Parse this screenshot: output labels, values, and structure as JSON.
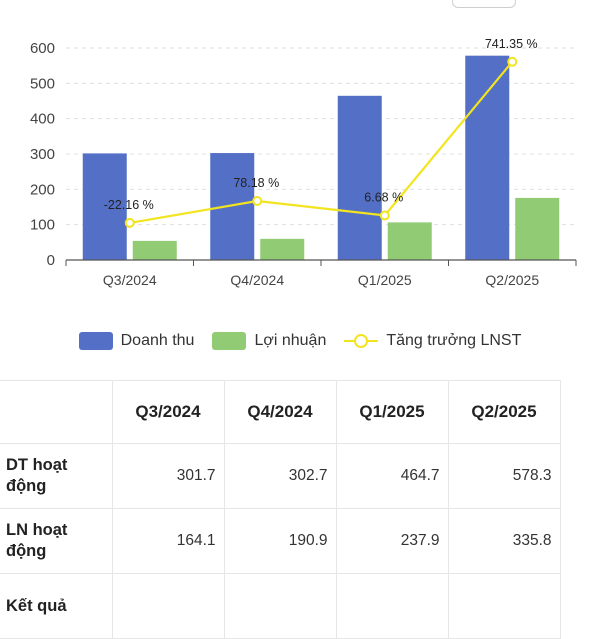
{
  "chart_data": {
    "type": "bar",
    "categories": [
      "Q3/2024",
      "Q4/2024",
      "Q1/2025",
      "Q2/2025"
    ],
    "ylim": [
      0,
      600
    ],
    "yticks": [
      0,
      100,
      200,
      300,
      400,
      500,
      600
    ],
    "grid": true,
    "series": [
      {
        "name": "Doanh thu",
        "type": "bar",
        "color": "#5470c6",
        "values": [
          301.7,
          302.7,
          464.7,
          578.3
        ]
      },
      {
        "name": "Lợi nhuận",
        "type": "bar",
        "color": "#91cc75",
        "values": [
          54.1,
          59.9,
          106.5,
          175.8
        ]
      },
      {
        "name": "Tăng trưởng LNST",
        "type": "line",
        "color": "#f2e41e",
        "values": [
          105,
          167,
          126,
          561
        ],
        "labels": [
          "-22.16 %",
          "78.18 %",
          "6.68 %",
          "741.35 %"
        ]
      }
    ],
    "legend_position": "bottom"
  },
  "table": {
    "headers": [
      "",
      "Q3/2024",
      "Q4/2024",
      "Q1/2025",
      "Q2/2025"
    ],
    "rows": [
      {
        "label": "DT hoạt động",
        "values": [
          "301.7",
          "302.7",
          "464.7",
          "578.3"
        ]
      },
      {
        "label": "LN hoạt động",
        "values": [
          "164.1",
          "190.9",
          "237.9",
          "335.8"
        ]
      },
      {
        "label": "Kết quả",
        "values": [
          "",
          "",
          "",
          ""
        ]
      }
    ]
  }
}
